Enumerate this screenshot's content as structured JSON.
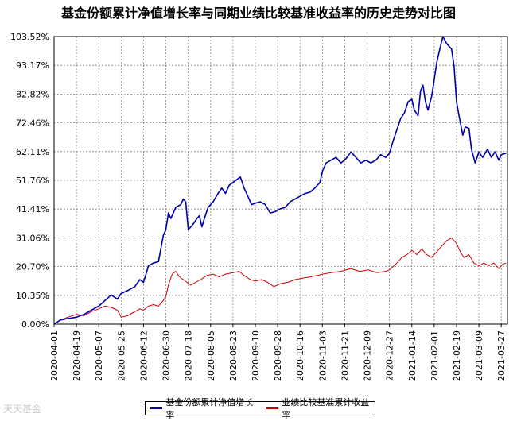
{
  "title": "基金份额累计净值增长率与同期业绩比较基准收益率的历史走势对比图",
  "watermark": "天天基金",
  "colors": {
    "fund": "#0000aa",
    "benchmark": "#cc0000",
    "grid": "#888888"
  },
  "chart_data": {
    "type": "line",
    "title": "基金份额累计净值增长率与同期业绩比较基准收益率的历史走势对比图",
    "xlabel": "",
    "ylabel": "",
    "ylim": [
      0.0,
      103.52
    ],
    "y_ticks": [
      "103.52%",
      "93.17%",
      "82.82%",
      "72.46%",
      "62.11%",
      "51.76%",
      "41.41%",
      "31.06%",
      "20.70%",
      "10.35%",
      "0.00%"
    ],
    "y_tick_values": [
      103.52,
      93.17,
      82.82,
      72.46,
      62.11,
      51.76,
      41.41,
      31.06,
      20.7,
      10.35,
      0.0
    ],
    "x_range": [
      "2020-04-01",
      "2021-04-01"
    ],
    "x_ticks": [
      "2020-04-01",
      "2020-04-19",
      "2020-05-07",
      "2020-05-25",
      "2020-06-12",
      "2020-06-30",
      "2020-07-18",
      "2020-08-05",
      "2020-08-23",
      "2020-09-10",
      "2020-09-28",
      "2020-10-16",
      "2020-11-03",
      "2020-11-21",
      "2020-12-09",
      "2020-12-27",
      "2021-01-14",
      "2021-02-01",
      "2021-02-19",
      "2021-03-09",
      "2021-03-27"
    ],
    "grid": true,
    "legend_position": "bottom",
    "series": [
      {
        "name": "基金份额累计净值增长率",
        "color": "#0000aa",
        "points": [
          [
            "2020-04-01",
            0.0
          ],
          [
            "2020-04-06",
            1.5
          ],
          [
            "2020-04-12",
            2.0
          ],
          [
            "2020-04-19",
            2.5
          ],
          [
            "2020-04-25",
            3.5
          ],
          [
            "2020-05-01",
            5.0
          ],
          [
            "2020-05-07",
            6.5
          ],
          [
            "2020-05-12",
            8.5
          ],
          [
            "2020-05-17",
            10.5
          ],
          [
            "2020-05-22",
            9.0
          ],
          [
            "2020-05-25",
            11.0
          ],
          [
            "2020-05-30",
            12.0
          ],
          [
            "2020-06-05",
            13.5
          ],
          [
            "2020-06-09",
            16.0
          ],
          [
            "2020-06-12",
            15.0
          ],
          [
            "2020-06-16",
            21.0
          ],
          [
            "2020-06-20",
            22.0
          ],
          [
            "2020-06-24",
            22.5
          ],
          [
            "2020-06-28",
            32.0
          ],
          [
            "2020-06-30",
            34.0
          ],
          [
            "2020-07-02",
            40.0
          ],
          [
            "2020-07-04",
            38.0
          ],
          [
            "2020-07-08",
            42.0
          ],
          [
            "2020-07-12",
            43.0
          ],
          [
            "2020-07-14",
            45.0
          ],
          [
            "2020-07-16",
            44.0
          ],
          [
            "2020-07-18",
            34.0
          ],
          [
            "2020-07-22",
            36.0
          ],
          [
            "2020-07-25",
            38.0
          ],
          [
            "2020-07-27",
            39.0
          ],
          [
            "2020-07-29",
            35.0
          ],
          [
            "2020-07-31",
            38.0
          ],
          [
            "2020-08-03",
            42.0
          ],
          [
            "2020-08-07",
            44.0
          ],
          [
            "2020-08-11",
            47.0
          ],
          [
            "2020-08-14",
            49.0
          ],
          [
            "2020-08-17",
            47.0
          ],
          [
            "2020-08-20",
            50.0
          ],
          [
            "2020-08-23",
            51.0
          ],
          [
            "2020-08-26",
            52.0
          ],
          [
            "2020-08-29",
            53.0
          ],
          [
            "2020-09-01",
            49.0
          ],
          [
            "2020-09-04",
            46.0
          ],
          [
            "2020-09-07",
            43.0
          ],
          [
            "2020-09-10",
            43.5
          ],
          [
            "2020-09-14",
            44.0
          ],
          [
            "2020-09-18",
            43.0
          ],
          [
            "2020-09-22",
            40.0
          ],
          [
            "2020-09-26",
            40.5
          ],
          [
            "2020-09-30",
            41.5
          ],
          [
            "2020-10-04",
            42.0
          ],
          [
            "2020-10-08",
            44.0
          ],
          [
            "2020-10-12",
            45.0
          ],
          [
            "2020-10-16",
            46.0
          ],
          [
            "2020-10-20",
            47.0
          ],
          [
            "2020-10-24",
            47.5
          ],
          [
            "2020-10-28",
            49.0
          ],
          [
            "2020-11-01",
            51.0
          ],
          [
            "2020-11-03",
            55.0
          ],
          [
            "2020-11-06",
            58.0
          ],
          [
            "2020-11-10",
            59.0
          ],
          [
            "2020-11-14",
            60.0
          ],
          [
            "2020-11-18",
            58.0
          ],
          [
            "2020-11-22",
            59.5
          ],
          [
            "2020-11-26",
            62.0
          ],
          [
            "2020-11-30",
            60.0
          ],
          [
            "2020-12-04",
            58.0
          ],
          [
            "2020-12-08",
            59.0
          ],
          [
            "2020-12-12",
            58.0
          ],
          [
            "2020-12-16",
            59.0
          ],
          [
            "2020-12-20",
            61.0
          ],
          [
            "2020-12-24",
            60.0
          ],
          [
            "2020-12-27",
            61.5
          ],
          [
            "2020-12-30",
            66.0
          ],
          [
            "2021-01-02",
            70.0
          ],
          [
            "2021-01-05",
            74.0
          ],
          [
            "2021-01-08",
            76.0
          ],
          [
            "2021-01-11",
            80.0
          ],
          [
            "2021-01-14",
            81.0
          ],
          [
            "2021-01-16",
            77.0
          ],
          [
            "2021-01-19",
            75.0
          ],
          [
            "2021-01-21",
            84.0
          ],
          [
            "2021-01-23",
            86.0
          ],
          [
            "2021-01-25",
            80.0
          ],
          [
            "2021-01-27",
            77.0
          ],
          [
            "2021-01-30",
            82.0
          ],
          [
            "2021-02-01",
            88.0
          ],
          [
            "2021-02-03",
            94.0
          ],
          [
            "2021-02-05",
            98.0
          ],
          [
            "2021-02-08",
            103.52
          ],
          [
            "2021-02-11",
            101.0
          ],
          [
            "2021-02-15",
            99.0
          ],
          [
            "2021-02-17",
            93.0
          ],
          [
            "2021-02-19",
            80.0
          ],
          [
            "2021-02-21",
            75.0
          ],
          [
            "2021-02-24",
            68.0
          ],
          [
            "2021-02-26",
            71.0
          ],
          [
            "2021-03-01",
            70.5
          ],
          [
            "2021-03-03",
            63.0
          ],
          [
            "2021-03-06",
            58.0
          ],
          [
            "2021-03-09",
            62.0
          ],
          [
            "2021-03-12",
            60.0
          ],
          [
            "2021-03-16",
            63.0
          ],
          [
            "2021-03-19",
            60.0
          ],
          [
            "2021-03-22",
            62.0
          ],
          [
            "2021-03-25",
            59.0
          ],
          [
            "2021-03-27",
            61.0
          ],
          [
            "2021-03-31",
            61.5
          ]
        ]
      },
      {
        "name": "业绩比较基准累计收益率",
        "color": "#cc0000",
        "points": [
          [
            "2020-04-01",
            0.0
          ],
          [
            "2020-04-06",
            1.5
          ],
          [
            "2020-04-12",
            2.5
          ],
          [
            "2020-04-19",
            3.5
          ],
          [
            "2020-04-25",
            3.0
          ],
          [
            "2020-05-01",
            4.5
          ],
          [
            "2020-05-07",
            5.5
          ],
          [
            "2020-05-12",
            6.5
          ],
          [
            "2020-05-17",
            6.0
          ],
          [
            "2020-05-22",
            5.0
          ],
          [
            "2020-05-25",
            2.5
          ],
          [
            "2020-05-30",
            3.0
          ],
          [
            "2020-06-05",
            4.5
          ],
          [
            "2020-06-09",
            5.5
          ],
          [
            "2020-06-12",
            5.0
          ],
          [
            "2020-06-16",
            6.5
          ],
          [
            "2020-06-20",
            7.0
          ],
          [
            "2020-06-24",
            6.5
          ],
          [
            "2020-06-28",
            8.5
          ],
          [
            "2020-06-30",
            10.0
          ],
          [
            "2020-07-02",
            14.0
          ],
          [
            "2020-07-05",
            18.0
          ],
          [
            "2020-07-08",
            19.0
          ],
          [
            "2020-07-11",
            17.0
          ],
          [
            "2020-07-14",
            16.0
          ],
          [
            "2020-07-17",
            15.0
          ],
          [
            "2020-07-20",
            14.0
          ],
          [
            "2020-07-24",
            15.0
          ],
          [
            "2020-07-28",
            16.0
          ],
          [
            "2020-08-02",
            17.5
          ],
          [
            "2020-08-07",
            18.0
          ],
          [
            "2020-08-12",
            17.0
          ],
          [
            "2020-08-17",
            18.0
          ],
          [
            "2020-08-23",
            18.5
          ],
          [
            "2020-08-28",
            19.0
          ],
          [
            "2020-09-01",
            17.5
          ],
          [
            "2020-09-06",
            16.0
          ],
          [
            "2020-09-10",
            15.5
          ],
          [
            "2020-09-15",
            16.0
          ],
          [
            "2020-09-20",
            15.0
          ],
          [
            "2020-09-25",
            13.5
          ],
          [
            "2020-09-30",
            14.5
          ],
          [
            "2020-10-06",
            15.0
          ],
          [
            "2020-10-12",
            16.0
          ],
          [
            "2020-10-18",
            16.5
          ],
          [
            "2020-10-24",
            17.0
          ],
          [
            "2020-10-30",
            17.5
          ],
          [
            "2020-11-03",
            18.0
          ],
          [
            "2020-11-10",
            18.5
          ],
          [
            "2020-11-18",
            19.0
          ],
          [
            "2020-11-26",
            20.0
          ],
          [
            "2020-12-03",
            19.0
          ],
          [
            "2020-12-10",
            19.5
          ],
          [
            "2020-12-17",
            18.5
          ],
          [
            "2020-12-24",
            19.0
          ],
          [
            "2020-12-27",
            19.5
          ],
          [
            "2021-01-02",
            22.0
          ],
          [
            "2021-01-06",
            24.0
          ],
          [
            "2021-01-10",
            25.0
          ],
          [
            "2021-01-14",
            26.5
          ],
          [
            "2021-01-18",
            25.0
          ],
          [
            "2021-01-22",
            27.0
          ],
          [
            "2021-01-26",
            25.0
          ],
          [
            "2021-01-30",
            24.0
          ],
          [
            "2021-02-03",
            26.0
          ],
          [
            "2021-02-07",
            28.0
          ],
          [
            "2021-02-11",
            30.0
          ],
          [
            "2021-02-15",
            31.0
          ],
          [
            "2021-02-19",
            29.0
          ],
          [
            "2021-02-22",
            26.0
          ],
          [
            "2021-02-25",
            24.0
          ],
          [
            "2021-03-01",
            25.0
          ],
          [
            "2021-03-05",
            22.0
          ],
          [
            "2021-03-09",
            21.0
          ],
          [
            "2021-03-13",
            22.0
          ],
          [
            "2021-03-17",
            21.0
          ],
          [
            "2021-03-21",
            22.0
          ],
          [
            "2021-03-25",
            20.0
          ],
          [
            "2021-03-28",
            21.5
          ],
          [
            "2021-03-31",
            22.0
          ]
        ]
      }
    ]
  }
}
